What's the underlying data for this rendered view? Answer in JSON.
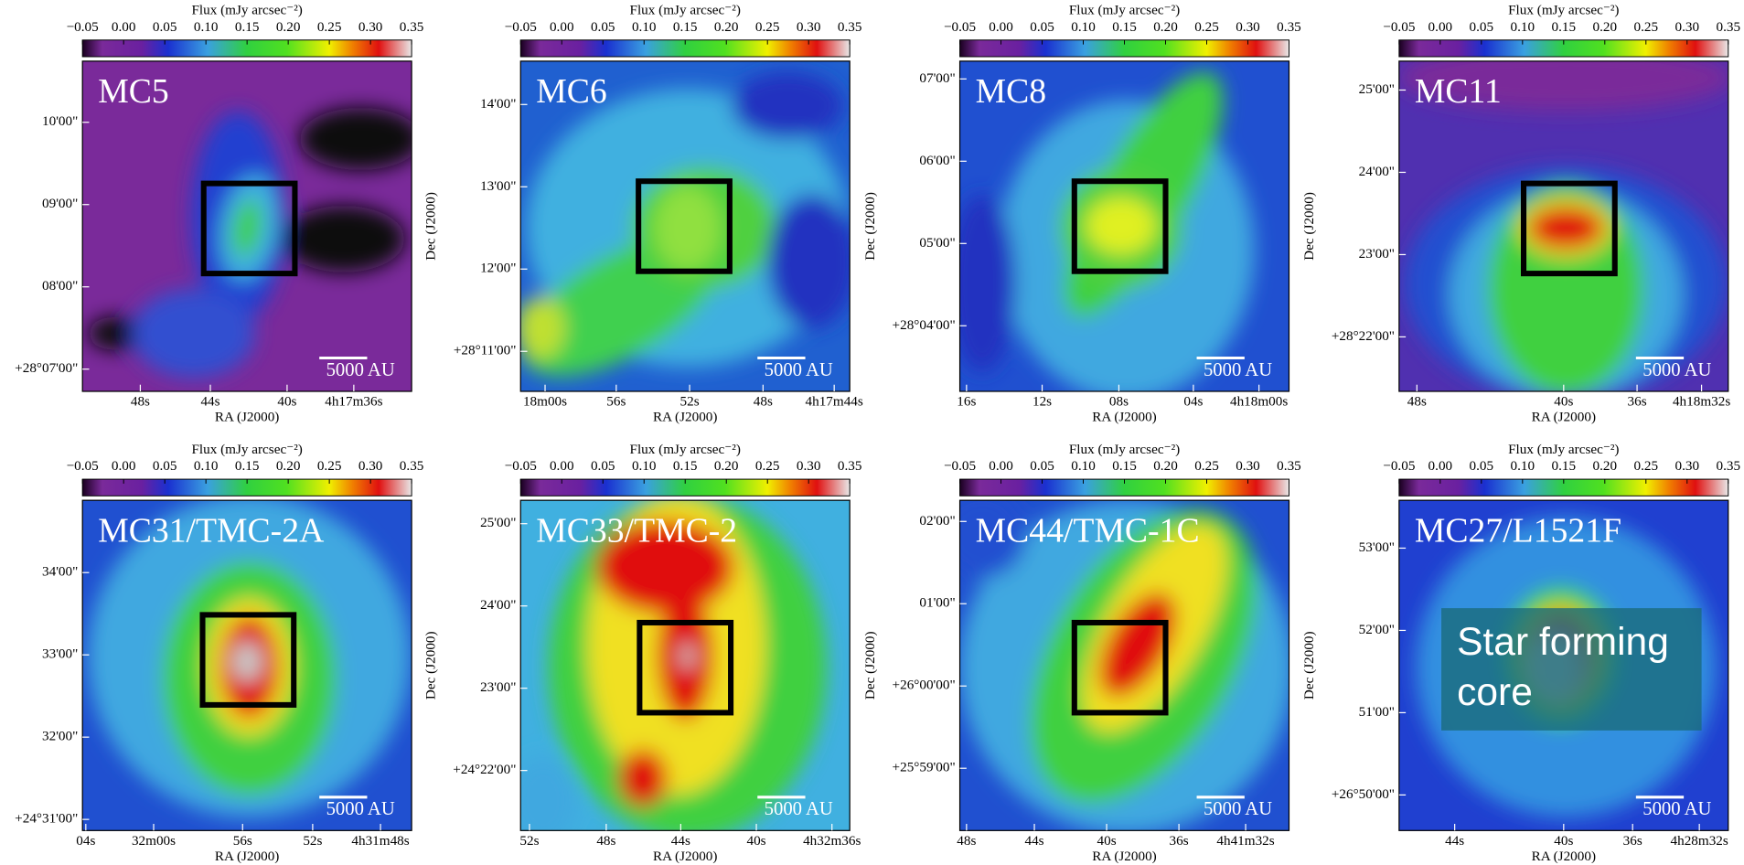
{
  "colorbar": {
    "label": "Flux (mJy arcsec⁻²)",
    "lim": [
      -0.05,
      0.35
    ],
    "ticks": [
      {
        "value": -0.05,
        "label": "−0.05"
      },
      {
        "value": 0,
        "label": "0.00"
      },
      {
        "value": 0.05,
        "label": "0.05"
      },
      {
        "value": 0.1,
        "label": "0.10"
      },
      {
        "value": 0.15,
        "label": "0.15"
      },
      {
        "value": 0.2,
        "label": "0.20"
      },
      {
        "value": 0.25,
        "label": "0.25"
      },
      {
        "value": 0.3,
        "label": "0.30"
      },
      {
        "value": 0.35,
        "label": "0.35"
      }
    ]
  },
  "panels": [
    {
      "name": "MC5",
      "ra_label": "RA (J2000)",
      "ra_ticks": [
        "48s",
        "44s",
        "40s",
        "4h17m36s"
      ],
      "dec_ticks": [
        "10'00\"",
        "09'00\"",
        "08'00\"",
        "+28°07'00\""
      ],
      "scale_bar": "5000 AU"
    },
    {
      "name": "MC6",
      "ra_label": "RA (J2000)",
      "dec_label": "Dec (J2000)",
      "ra_ticks": [
        "18m00s",
        "56s",
        "52s",
        "48s",
        "4h17m44s"
      ],
      "dec_ticks": [
        "14'00\"",
        "13'00\"",
        "12'00\"",
        "+28°11'00\""
      ],
      "scale_bar": "5000 AU"
    },
    {
      "name": "MC8",
      "ra_label": "RA (J2000)",
      "dec_label": "Dec (J2000)",
      "ra_ticks": [
        "16s",
        "12s",
        "08s",
        "04s",
        "4h18m00s"
      ],
      "dec_ticks": [
        "07'00\"",
        "06'00\"",
        "05'00\"",
        "+28°04'00\""
      ],
      "scale_bar": "5000 AU"
    },
    {
      "name": "MC11",
      "ra_label": "RA (J2000)",
      "dec_label": "Dec (J2000)",
      "ra_ticks": [
        "48s",
        "40s",
        "36s",
        "4h18m32s"
      ],
      "dec_ticks": [
        "25'00\"",
        "24'00\"",
        "23'00\"",
        "+28°22'00\""
      ],
      "scale_bar": "5000 AU"
    },
    {
      "name": "MC31/TMC-2A",
      "ra_label": "RA (J2000)",
      "ra_ticks": [
        "04s",
        "32m00s",
        "56s",
        "52s",
        "4h31m48s"
      ],
      "dec_ticks": [
        "34'00\"",
        "33'00\"",
        "32'00\"",
        "+24°31'00\""
      ],
      "scale_bar": "5000 AU"
    },
    {
      "name": "MC33/TMC-2",
      "ra_label": "RA (J2000)",
      "dec_label": "Dec (J2000)",
      "ra_ticks": [
        "52s",
        "48s",
        "44s",
        "40s",
        "4h32m36s"
      ],
      "dec_ticks": [
        "25'00\"",
        "24'00\"",
        "23'00\"",
        "+24°22'00\""
      ],
      "scale_bar": "5000 AU"
    },
    {
      "name": "MC44/TMC-1C",
      "ra_label": "RA (J2000)",
      "dec_label": "Dec (J2000)",
      "ra_ticks": [
        "48s",
        "44s",
        "40s",
        "36s",
        "4h41m32s"
      ],
      "dec_ticks": [
        "02'00\"",
        "01'00\"",
        "+26°00'00\"",
        "+25°59'00\""
      ],
      "scale_bar": "5000 AU"
    },
    {
      "name": "MC27/L1521F",
      "ra_label": "RA (J2000)",
      "dec_label": "Dec (J2000)",
      "ra_ticks": [
        "44s",
        "40s",
        "36s",
        "4h28m32s"
      ],
      "dec_ticks": [
        "53'00\"",
        "52'00\"",
        "51'00\"",
        "+26°50'00\""
      ],
      "scale_bar": "5000 AU"
    }
  ],
  "annotation": "Star forming core"
}
